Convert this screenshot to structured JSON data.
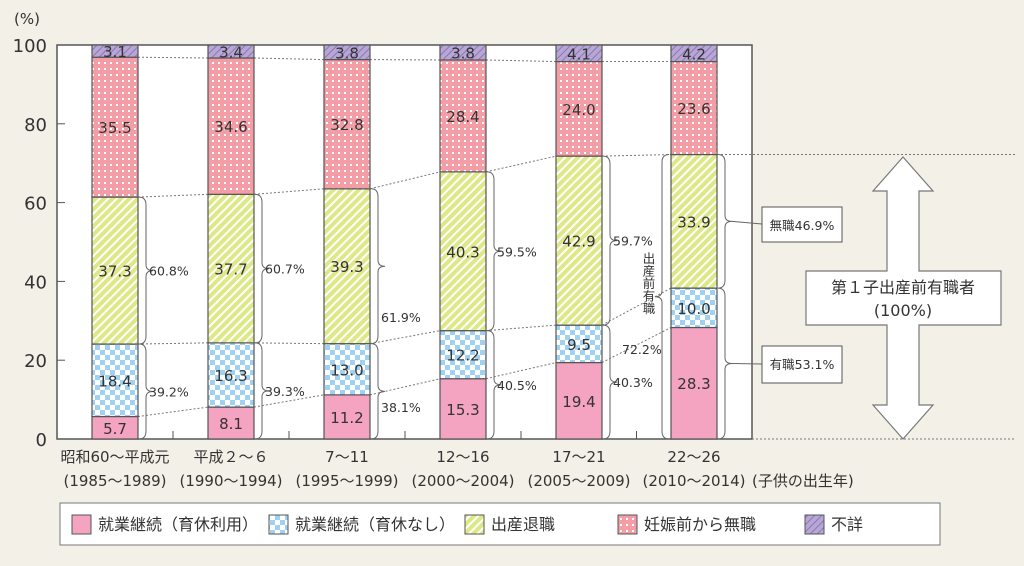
{
  "chart_data": {
    "type": "bar",
    "stacked": true,
    "ylabel": "(%)",
    "ylim": [
      0,
      100
    ],
    "yticks": [
      "0",
      "20",
      "40",
      "60",
      "80",
      "100"
    ],
    "categories": [
      {
        "line1": "昭和60〜平成元",
        "line2": "(1985〜1989)"
      },
      {
        "line1": "平成２〜６",
        "line2": "(1990〜1994)"
      },
      {
        "line1": "7〜11",
        "line2": "(1995〜1999)"
      },
      {
        "line1": "12〜16",
        "line2": "(2000〜2004)"
      },
      {
        "line1": "17〜21",
        "line2": "(2005〜2009)"
      },
      {
        "line1": "22〜26",
        "line2": "(2010〜2014)"
      }
    ],
    "xlabel": "(子供の出生年)",
    "series": [
      {
        "name": "就業継続（育休利用）",
        "color": "#f4a3c0",
        "values": [
          5.7,
          8.1,
          11.2,
          15.3,
          19.4,
          28.3
        ]
      },
      {
        "name": "就業継続（育休なし）",
        "color": "#9fd2f2",
        "values": [
          18.4,
          16.3,
          13.0,
          12.2,
          9.5,
          10.0
        ]
      },
      {
        "name": "出産退職",
        "color": "#dde887",
        "values": [
          37.3,
          37.7,
          39.3,
          40.3,
          42.9,
          33.9
        ]
      },
      {
        "name": "妊娠前から無職",
        "color": "#f39ea6",
        "values": [
          35.5,
          34.6,
          32.8,
          28.4,
          24.0,
          23.6
        ]
      },
      {
        "name": "不詳",
        "color": "#b8a6d6",
        "values": [
          3.1,
          3.4,
          3.8,
          3.8,
          4.1,
          4.2
        ]
      }
    ],
    "bracket_labels": {
      "upper": [
        "60.8%",
        "60.7%",
        "61.9%",
        "59.5%",
        "59.7%"
      ],
      "lower": [
        "39.2%",
        "39.3%",
        "38.1%",
        "40.5%",
        "40.3%"
      ]
    },
    "annotations": {
      "vertical_label": "出産前有職",
      "vertical_value": "72.2%",
      "unemployed_box": "無職46.9%",
      "employed_box": "有職53.1%",
      "arrow_title": "第１子出産前有職者",
      "arrow_sub": "(100%)"
    },
    "legend_position": "bottom",
    "grid": false
  }
}
